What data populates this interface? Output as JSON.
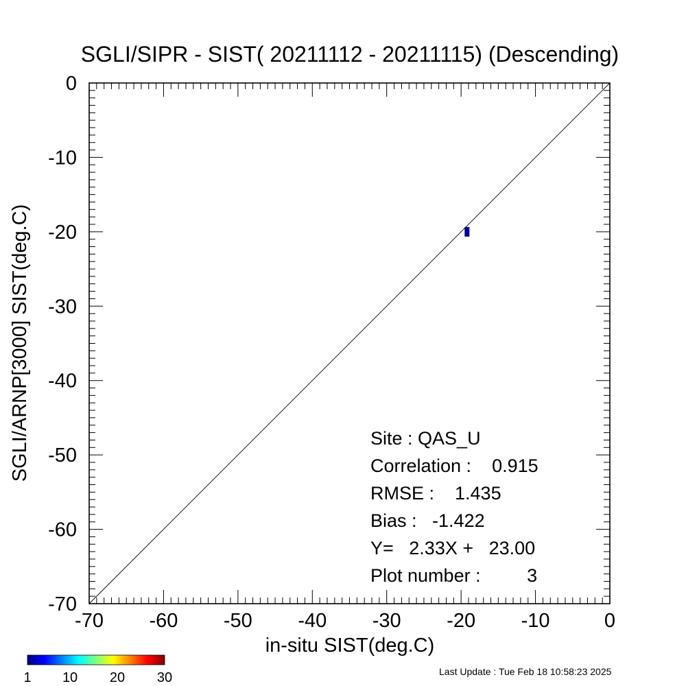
{
  "chart_data": {
    "type": "scatter",
    "title": "SGLI/SIPR - SIST( 20211112 - 20211115) (Descending)",
    "xlabel": "in-situ SIST(deg.C)",
    "ylabel": "SGLI/ARNP[3000]    SIST(deg.C)",
    "xlim": [
      -70,
      0
    ],
    "ylim": [
      -70,
      0
    ],
    "x_ticks": [
      -70,
      -60,
      -50,
      -40,
      -30,
      -20,
      -10,
      0
    ],
    "y_ticks": [
      0,
      -10,
      -20,
      -30,
      -40,
      -50,
      -60,
      -70
    ],
    "grid": false,
    "reference_line": "y = x",
    "points": [
      {
        "x": -19.2,
        "y": -20.0,
        "count": 3,
        "color": "#00008f"
      }
    ],
    "annotations": {
      "site": "Site : QAS_U",
      "correlation": "Correlation :    0.915",
      "rmse": "RMSE :    1.435",
      "bias": "Bias :   -1.422",
      "fit": "Y=   2.33X +   23.00",
      "plot_number": "Plot number :         3"
    },
    "colorbar": {
      "colors": [
        "#00007f",
        "#0000ff",
        "#0080ff",
        "#00ffff",
        "#80ff80",
        "#ffff00",
        "#ff8000",
        "#ff0000",
        "#7f0000"
      ],
      "tick_labels": [
        "1",
        "10",
        "20",
        "30"
      ],
      "ticks": [
        1,
        10,
        20,
        30
      ],
      "range": [
        1,
        30
      ]
    }
  },
  "footer": {
    "last_update": "Last Update : Tue Feb 18 10:58:23 2025"
  }
}
